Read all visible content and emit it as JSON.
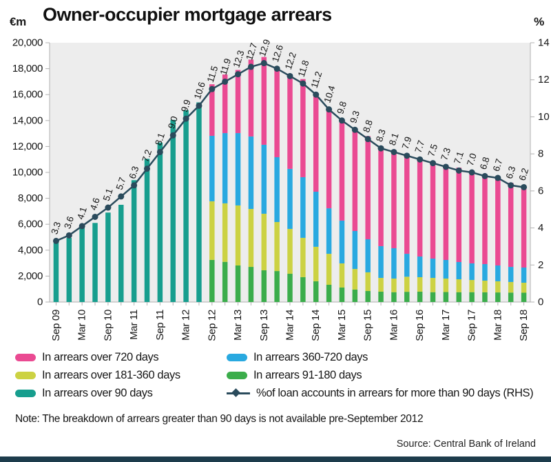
{
  "header": {
    "title": "Owner-occupier mortgage arrears",
    "left_unit": "€m",
    "right_unit": "%"
  },
  "chart_data": {
    "type": "bar",
    "subtype": "stacked-bars-with-line",
    "title": "Owner-occupier mortgage arrears",
    "x": [
      "Sep 09",
      "Dec 09",
      "Mar 10",
      "Jun 10",
      "Sep 10",
      "Dec 10",
      "Mar 11",
      "Jun 11",
      "Sep 11",
      "Dec 11",
      "Mar 12",
      "Jun 12",
      "Sep 12",
      "Dec 12",
      "Mar 13",
      "Jun 13",
      "Sep 13",
      "Dec 13",
      "Mar 14",
      "Jun 14",
      "Sep 14",
      "Dec 14",
      "Mar 15",
      "Jun 15",
      "Sep 15",
      "Dec 15",
      "Mar 16",
      "Jun 16",
      "Sep 16",
      "Dec 16",
      "Mar 17",
      "Jun 17",
      "Sep 17",
      "Dec 17",
      "Mar 18",
      "Jun 18",
      "Sep 18"
    ],
    "x_tick_labels": [
      "Sep 09",
      "Mar 10",
      "Sep 10",
      "Mar 11",
      "Sep 11",
      "Mar 12",
      "Sep 12",
      "Mar 13",
      "Sep 13",
      "Mar 14",
      "Sep 14",
      "Mar 15",
      "Sep 15",
      "Mar 16",
      "Sep 16",
      "Mar 17",
      "Sep 17",
      "Mar 18",
      "Sep 18"
    ],
    "series": [
      {
        "name": "In arrears over 90 days",
        "color": "#179e8e",
        "values": [
          4800,
          4950,
          5750,
          6100,
          6900,
          7500,
          9400,
          11050,
          12300,
          14050,
          14800,
          15400,
          0,
          0,
          0,
          0,
          0,
          0,
          0,
          0,
          0,
          0,
          0,
          0,
          0,
          0,
          0,
          0,
          0,
          0,
          0,
          0,
          0,
          0,
          0,
          0,
          0
        ]
      },
      {
        "name": "In arrears 91-180 days",
        "color": "#3bad4b",
        "values": [
          0,
          0,
          0,
          0,
          0,
          0,
          0,
          0,
          0,
          0,
          0,
          0,
          3250,
          3100,
          2820,
          2710,
          2450,
          2390,
          2180,
          1920,
          1600,
          1330,
          1120,
          960,
          850,
          800,
          760,
          790,
          800,
          760,
          770,
          760,
          760,
          750,
          740,
          730,
          720
        ]
      },
      {
        "name": "In arrears over 181-360 days",
        "color": "#ccd243",
        "values": [
          0,
          0,
          0,
          0,
          0,
          0,
          0,
          0,
          0,
          0,
          0,
          0,
          4520,
          4510,
          4630,
          4470,
          4360,
          3780,
          3460,
          3030,
          2660,
          2390,
          1860,
          1590,
          1440,
          1060,
          1050,
          1160,
          1115,
          1100,
          1040,
          995,
          940,
          900,
          860,
          815,
          770
        ]
      },
      {
        "name": "In arrears 360-720 days",
        "color": "#29a9e0",
        "values": [
          0,
          0,
          0,
          0,
          0,
          0,
          0,
          0,
          0,
          0,
          0,
          0,
          5050,
          5420,
          5580,
          5590,
          5320,
          5000,
          4630,
          4680,
          4250,
          3510,
          3300,
          2930,
          2550,
          2450,
          2340,
          1770,
          1595,
          1490,
          1435,
          1330,
          1280,
          1275,
          1220,
          1165,
          1170
        ]
      },
      {
        "name": "In arrears over 720 days",
        "color": "#ea4a92",
        "values": [
          0,
          0,
          0,
          0,
          0,
          0,
          0,
          0,
          0,
          0,
          0,
          0,
          3980,
          4520,
          4870,
          5930,
          6770,
          6830,
          7280,
          7570,
          7590,
          7670,
          7720,
          7920,
          7960,
          7690,
          7450,
          7610,
          7550,
          7450,
          7255,
          7285,
          7120,
          6915,
          6650,
          6490,
          6270
        ]
      }
    ],
    "line": {
      "name": "%of loan accounts in arrears for more than 90 days (RHS)",
      "color": "#2a4b5c",
      "axis": "right",
      "values": [
        3.3,
        3.6,
        4.1,
        4.6,
        5.1,
        5.7,
        6.3,
        7.2,
        8.1,
        9.0,
        9.9,
        10.6,
        11.5,
        11.9,
        12.3,
        12.7,
        12.9,
        12.6,
        12.2,
        11.8,
        11.2,
        10.4,
        9.8,
        9.3,
        8.8,
        8.3,
        8.1,
        7.9,
        7.7,
        7.5,
        7.3,
        7.1,
        7.0,
        6.8,
        6.7,
        6.3,
        6.2
      ]
    },
    "left_axis": {
      "unit": "€m",
      "min": 0,
      "max": 20000,
      "step": 2000,
      "tick_labels": [
        "0",
        "2,000",
        "4,000",
        "6,000",
        "8,000",
        "10,000",
        "12,000",
        "14,000",
        "16,000",
        "18,000",
        "20,000"
      ]
    },
    "right_axis": {
      "unit": "%",
      "min": 0,
      "max": 14,
      "step": 2,
      "tick_labels": [
        "0",
        "2",
        "4",
        "6",
        "8",
        "10",
        "12",
        "14"
      ]
    },
    "plot_background": "#ededed",
    "grid": false,
    "legend_position": "bottom"
  },
  "legend": {
    "items": [
      {
        "label": "In arrears over 720 days",
        "color": "#ea4a92"
      },
      {
        "label": "In arrears 360-720 days",
        "color": "#29a9e0"
      },
      {
        "label": "In arrears over 181-360 days",
        "color": "#ccd243"
      },
      {
        "label": "In arrears 91-180 days",
        "color": "#3bad4b"
      },
      {
        "label": "In arrears over 90 days",
        "color": "#179e8e"
      },
      {
        "label": "%of loan accounts in arrears for more than 90 days (RHS)",
        "color": "#2a4b5c"
      }
    ]
  },
  "note": "Note: The breakdown of arrears greater than 90 days is not available pre-September 2012",
  "source": "Source: Central Bank of Ireland"
}
